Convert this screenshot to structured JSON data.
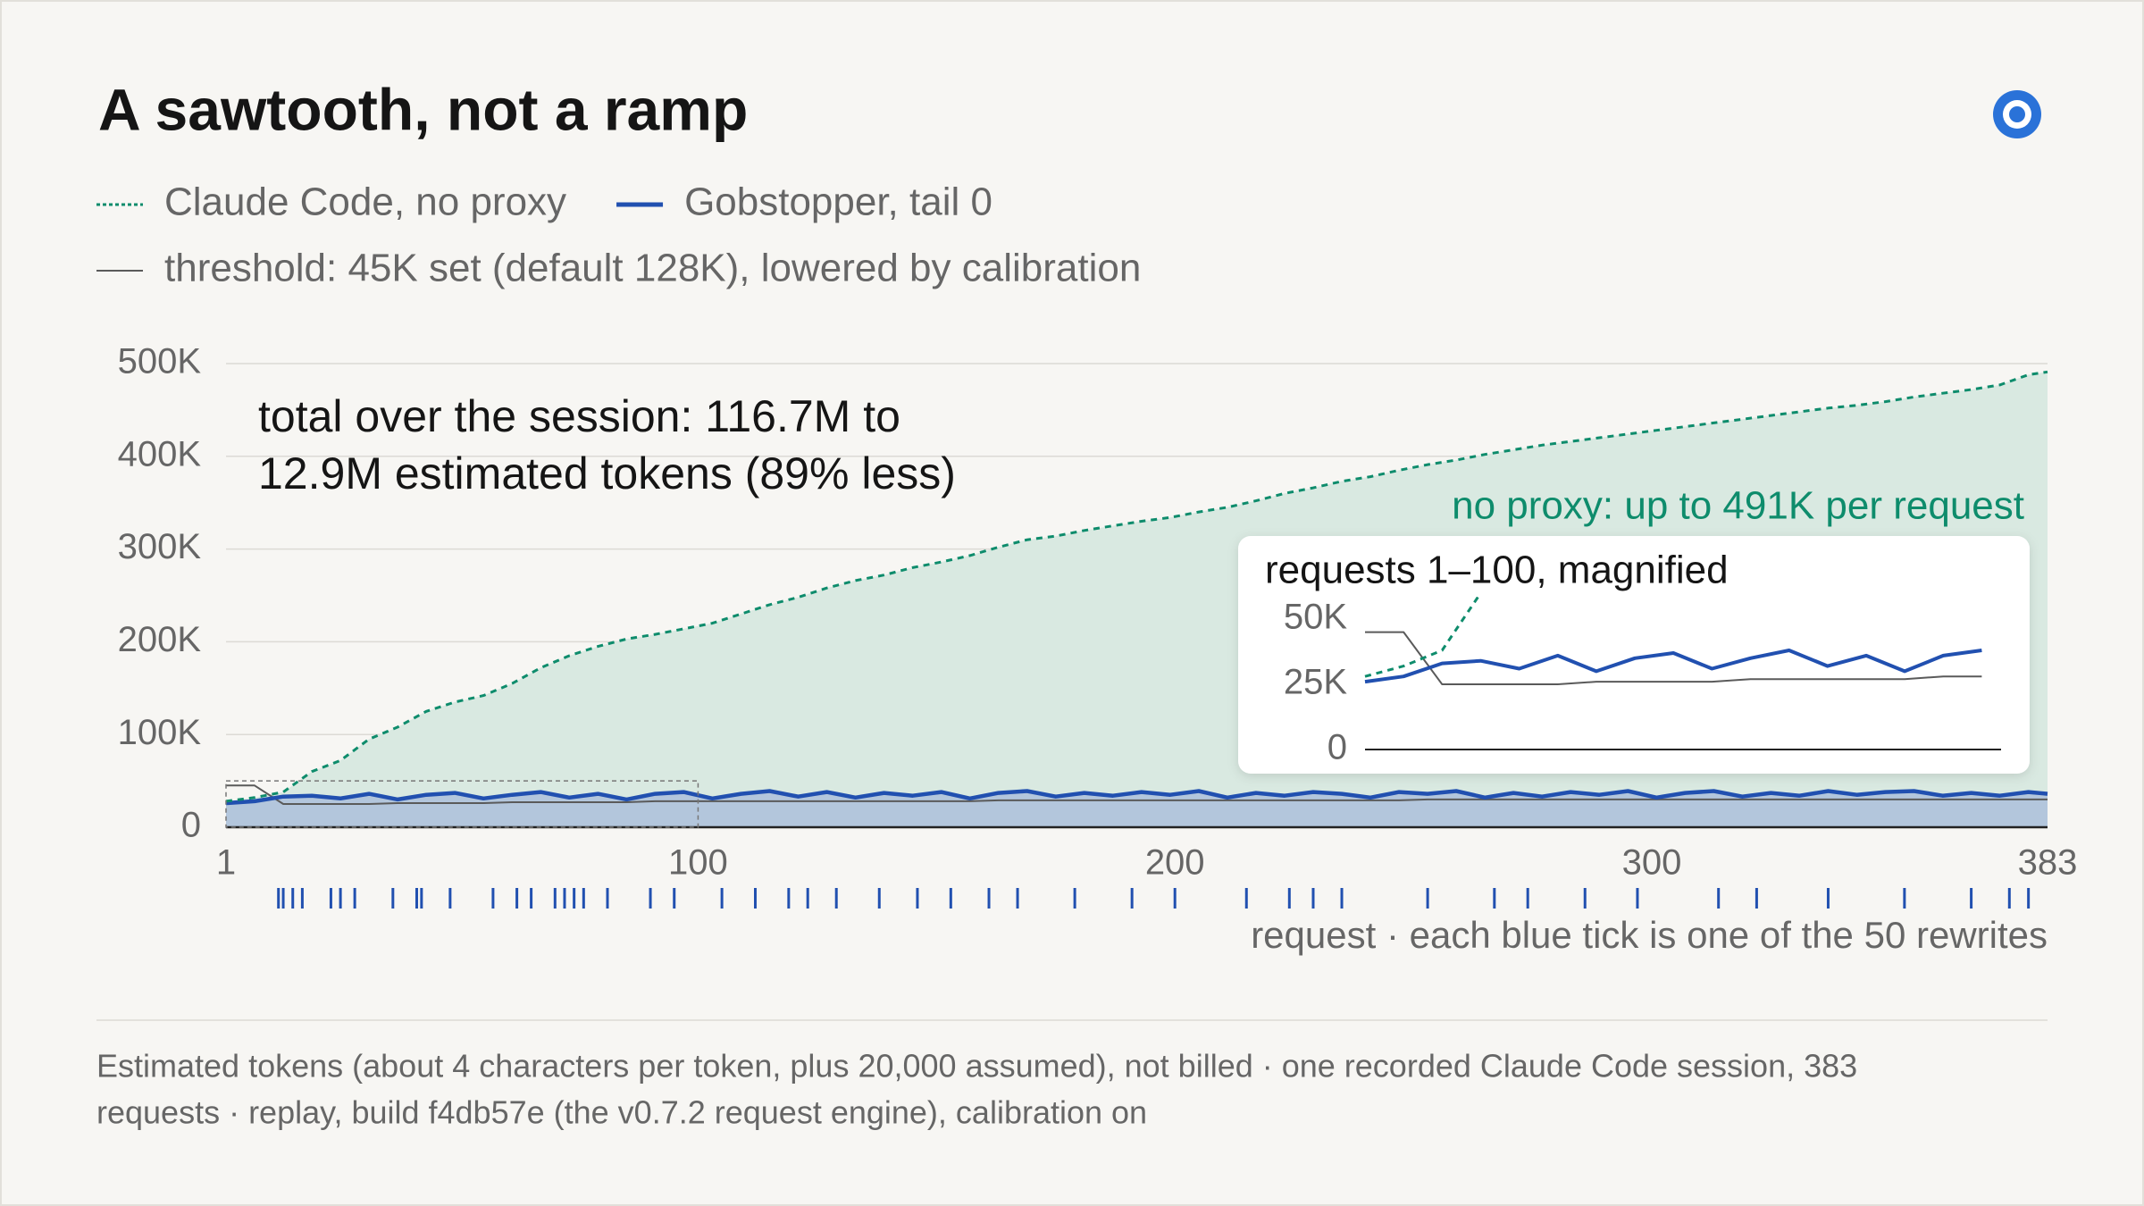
{
  "chart_data": {
    "type": "line",
    "title": "A sawtooth, not a ramp",
    "annotations": {
      "total": [
        "total over the session: 116.7M to",
        "12.9M estimated tokens (89% less)"
      ],
      "peak": "no proxy: up to 491K per request"
    },
    "x_label": "request · each blue tick is one of the 50 rewrites",
    "footnote": [
      "Estimated tokens (about 4 characters per token, plus 20,000 assumed), not billed · one recorded Claude Code session, 383",
      "requests · replay, build f4db57e (the v0.7.2 request engine), calibration on"
    ],
    "xlim": [
      1,
      383
    ],
    "xticks": [
      1,
      100,
      200,
      300,
      383
    ],
    "ylim": [
      0,
      500000
    ],
    "yticks": [
      0,
      {
        "value": 100000,
        "label": "100K"
      },
      {
        "value": 200000,
        "label": "200K"
      },
      {
        "value": 300000,
        "label": "300K"
      },
      {
        "value": 400000,
        "label": "400K"
      },
      {
        "value": 500000,
        "label": "500K"
      }
    ],
    "grid": true,
    "x": [
      1,
      7,
      13,
      19,
      25,
      31,
      37,
      43,
      49,
      55,
      61,
      67,
      73,
      79,
      85,
      91,
      97,
      103,
      109,
      115,
      121,
      127,
      133,
      139,
      145,
      151,
      157,
      163,
      169,
      175,
      181,
      187,
      193,
      199,
      205,
      211,
      217,
      223,
      229,
      235,
      241,
      247,
      253,
      259,
      265,
      271,
      277,
      283,
      289,
      295,
      301,
      307,
      313,
      319,
      325,
      331,
      337,
      343,
      349,
      355,
      361,
      367,
      373,
      379,
      383
    ],
    "series": [
      {
        "name": "Claude Code, no proxy",
        "color": "#0e8c6c",
        "dashed": true,
        "fill": "#d9e9e1",
        "values": [
          28000,
          32000,
          38000,
          60000,
          72000,
          95000,
          108000,
          125000,
          135000,
          142000,
          155000,
          172000,
          185000,
          195000,
          203000,
          208000,
          214000,
          220000,
          230000,
          240000,
          248000,
          258000,
          266000,
          272000,
          280000,
          286000,
          293000,
          302000,
          310000,
          314000,
          320000,
          325000,
          330000,
          334000,
          340000,
          345000,
          352000,
          360000,
          366000,
          373000,
          378000,
          385000,
          391000,
          396000,
          402000,
          407000,
          412000,
          416000,
          420000,
          424000,
          428000,
          432000,
          436000,
          440000,
          444000,
          448000,
          452000,
          455000,
          459000,
          464000,
          468000,
          472000,
          477000,
          488000,
          491000
        ]
      },
      {
        "name": "Gobstopper, tail 0",
        "color": "#2150b0",
        "dashed": false,
        "fill": "#b3c6dc",
        "values": [
          26000,
          28000,
          33000,
          34000,
          31000,
          36000,
          30000,
          35000,
          37000,
          31000,
          35000,
          38000,
          32000,
          36000,
          30000,
          36000,
          38000,
          31000,
          36000,
          39000,
          33000,
          38000,
          32000,
          37000,
          34000,
          38000,
          31000,
          37000,
          39000,
          33000,
          37000,
          34000,
          38000,
          35000,
          39000,
          32000,
          37000,
          34000,
          38000,
          36000,
          32000,
          38000,
          36000,
          39000,
          32000,
          37000,
          33000,
          38000,
          35000,
          39000,
          32000,
          37000,
          39000,
          33000,
          37000,
          34000,
          39000,
          35000,
          38000,
          39000,
          34000,
          37000,
          34000,
          38000,
          36000
        ]
      },
      {
        "name": "threshold: 45K set (default 128K), lowered by calibration",
        "color": "#5a5a5a",
        "dashed": false,
        "values": [
          45000,
          45000,
          25000,
          25000,
          25000,
          25000,
          26000,
          26000,
          26000,
          26000,
          27000,
          27000,
          27000,
          27000,
          27000,
          28000,
          28000,
          28000,
          28000,
          28000,
          28000,
          28000,
          28000,
          28000,
          28000,
          28000,
          28000,
          29000,
          29000,
          29000,
          29000,
          29000,
          29000,
          29000,
          29000,
          29000,
          29000,
          29000,
          29000,
          29000,
          29000,
          29000,
          30000,
          30000,
          30000,
          30000,
          30000,
          30000,
          30000,
          30000,
          30000,
          30000,
          30000,
          30000,
          30000,
          30000,
          30000,
          30000,
          30000,
          30000,
          30000,
          30000,
          30000,
          30000,
          30000
        ]
      }
    ],
    "rewrites": [
      12,
      13,
      15,
      17,
      23,
      25,
      28,
      36,
      41,
      42,
      48,
      57,
      62,
      65,
      70,
      72,
      74,
      76,
      81,
      90,
      95,
      105,
      112,
      119,
      123,
      129,
      138,
      146,
      153,
      161,
      167,
      179,
      191,
      200,
      215,
      224,
      229,
      235,
      253,
      267,
      274,
      286,
      297,
      314,
      322,
      337,
      353,
      367,
      375,
      379
    ],
    "rewrite_color": "#2150b0",
    "inset": {
      "title": "requests 1–100, magnified",
      "xlim": [
        1,
        100
      ],
      "ylim": [
        0,
        50000
      ],
      "yticks": [
        0,
        {
          "value": 25000,
          "label": "25K"
        },
        {
          "value": 50000,
          "label": "50K"
        }
      ]
    }
  }
}
